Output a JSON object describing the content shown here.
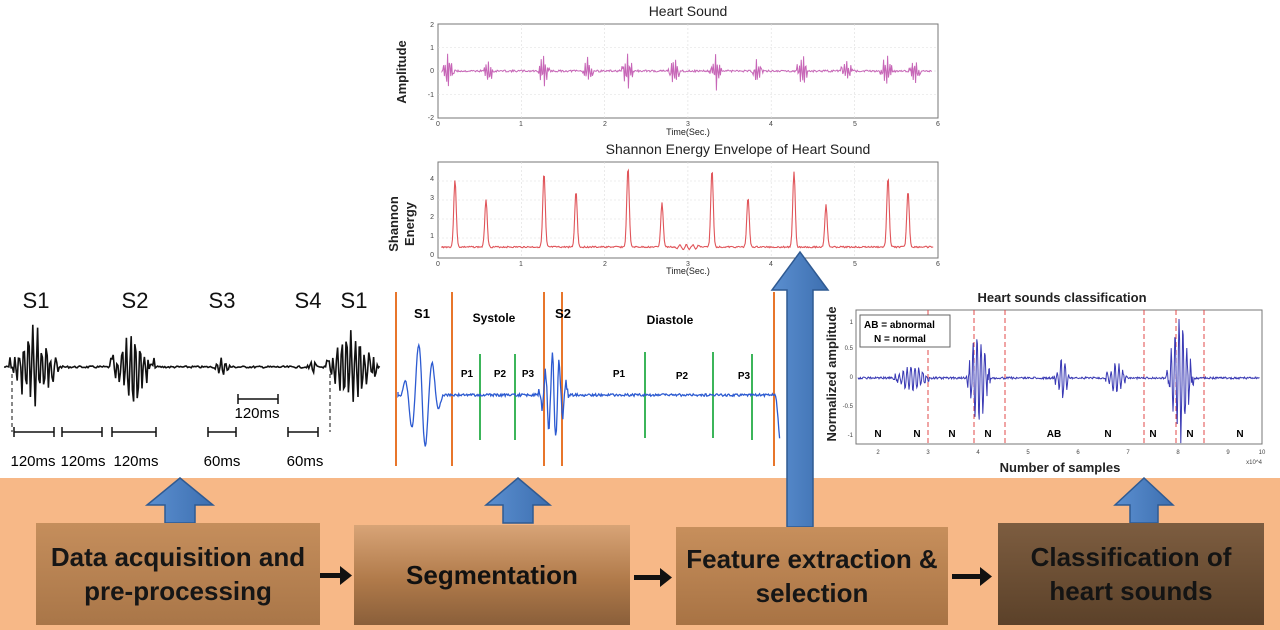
{
  "pipeline": {
    "step1": "Data acquisition and pre-processing",
    "step2": "Segmentation",
    "step3": "Feature extraction & selection",
    "step4": "Classification of heart sounds"
  },
  "waveform": {
    "labels": [
      "S1",
      "S2",
      "S3",
      "S4",
      "S1"
    ],
    "intervals": [
      "120ms",
      "120ms",
      "120ms",
      "60ms",
      "60ms"
    ],
    "mid_interval": "120ms"
  },
  "heart_sound_plot": {
    "title": "Heart Sound",
    "ylabel": "Amplitude",
    "xlabel": "Time(Sec.)",
    "yticks": [
      "2",
      "1",
      "0",
      "-1",
      "-2"
    ],
    "xticks": [
      "0",
      "1",
      "2",
      "3",
      "4",
      "5",
      "6"
    ]
  },
  "energy_plot": {
    "title": "Shannon Energy Envelope of Heart Sound",
    "ylabel_line1": "Shannon",
    "ylabel_line2": "Energy",
    "xlabel": "Time(Sec.)",
    "yticks": [
      "4",
      "3",
      "2",
      "1",
      "0"
    ],
    "xticks": [
      "0",
      "1",
      "2",
      "3",
      "4",
      "5",
      "6"
    ]
  },
  "segmentation_plot": {
    "labels": [
      "S1",
      "Systole",
      "S2",
      "Diastole"
    ],
    "phases": [
      "P1",
      "P2",
      "P3",
      "P1",
      "P2",
      "P3"
    ]
  },
  "classification_plot": {
    "title": "Heart sounds classification",
    "ylabel": "Normalized amplitude",
    "xlabel": "Number of samples",
    "legend_ab": "AB = abnormal",
    "legend_n": "N = normal",
    "yticks": [
      "1",
      "0.5",
      "0",
      "-0.5",
      "-1"
    ],
    "xticks": [
      "2",
      "3",
      "4",
      "5",
      "6",
      "7",
      "8",
      "9",
      "10"
    ],
    "exponent": "x10^4",
    "regions": [
      "N",
      "N",
      "N",
      "N",
      "AB",
      "N",
      "N",
      "N",
      "N"
    ]
  },
  "colors": {
    "band": "#f7b887",
    "arrow": "#4a7ebb",
    "heart_sound": "#c766b7",
    "energy": "#e0555a",
    "segment_wave": "#2d5bd1",
    "segment_orange": "#e8762b",
    "segment_green": "#3cb55a",
    "classify_wave": "#3a3ab4",
    "classify_divider": "#e04848"
  }
}
